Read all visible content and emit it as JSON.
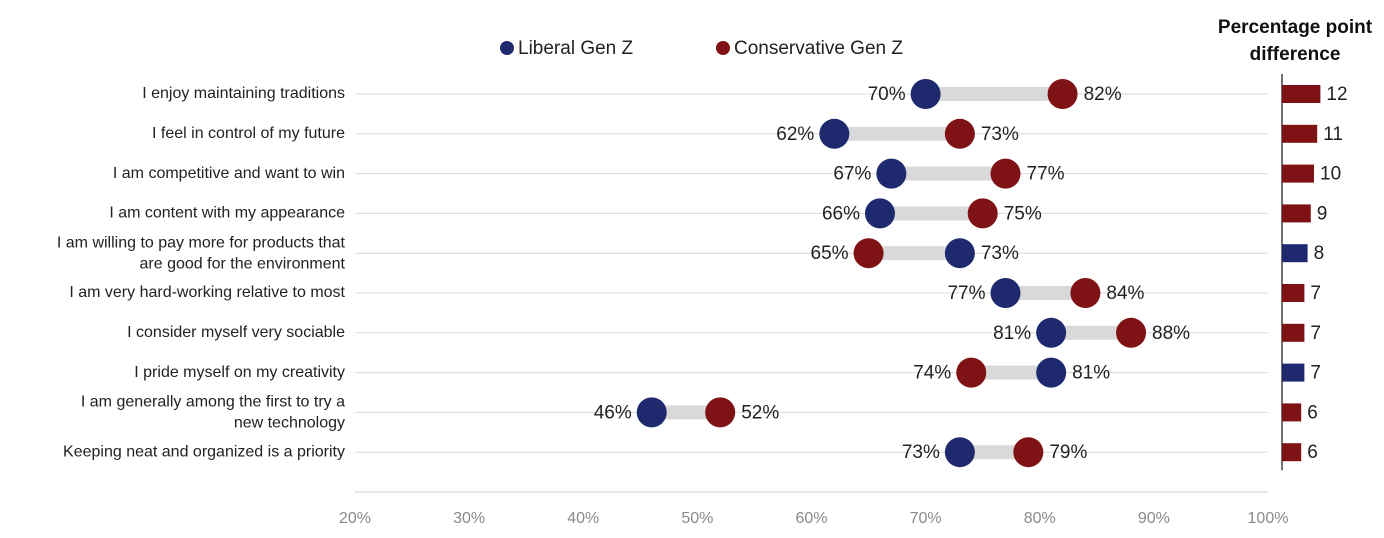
{
  "chart_data": {
    "type": "dumbbell",
    "xlim": [
      20,
      100
    ],
    "x_ticks": [
      "20%",
      "30%",
      "40%",
      "50%",
      "60%",
      "70%",
      "80%",
      "90%",
      "100%"
    ],
    "x_tick_values": [
      20,
      30,
      40,
      50,
      60,
      70,
      80,
      90,
      100
    ],
    "legend": [
      {
        "name": "Liberal Gen Z",
        "color": "#1f2a6e"
      },
      {
        "name": "Conservative Gen Z",
        "color": "#7f1214"
      }
    ],
    "diff_title_line1": "Percentage point",
    "diff_title_line2": "difference",
    "colors": {
      "liberal": "#1f2a6e",
      "conservative": "#7f1214",
      "connector": "#d9d9d9",
      "gridline": "#d9d9d9"
    },
    "rows": [
      {
        "label_lines": [
          "I enjoy maintaining traditions"
        ],
        "liberal": 70,
        "conservative": 82,
        "liberal_label": "70%",
        "conservative_label": "82%",
        "diff": 12,
        "diff_label": "12",
        "diff_color": "conservative"
      },
      {
        "label_lines": [
          "I feel in control of my future"
        ],
        "liberal": 62,
        "conservative": 73,
        "liberal_label": "62%",
        "conservative_label": "73%",
        "diff": 11,
        "diff_label": "11",
        "diff_color": "conservative"
      },
      {
        "label_lines": [
          "I am competitive and want to win"
        ],
        "liberal": 67,
        "conservative": 77,
        "liberal_label": "67%",
        "conservative_label": "77%",
        "diff": 10,
        "diff_label": "10",
        "diff_color": "conservative"
      },
      {
        "label_lines": [
          "I am content with my appearance"
        ],
        "liberal": 66,
        "conservative": 75,
        "liberal_label": "66%",
        "conservative_label": "75%",
        "diff": 9,
        "diff_label": "9",
        "diff_color": "conservative"
      },
      {
        "label_lines": [
          "I am willing to pay more for products that",
          "are good for the environment"
        ],
        "liberal": 73,
        "conservative": 65,
        "liberal_label": "73%",
        "conservative_label": "65%",
        "diff": 8,
        "diff_label": "8",
        "diff_color": "liberal"
      },
      {
        "label_lines": [
          "I am very hard-working relative to most"
        ],
        "liberal": 77,
        "conservative": 84,
        "liberal_label": "77%",
        "conservative_label": "84%",
        "diff": 7,
        "diff_label": "7",
        "diff_color": "conservative"
      },
      {
        "label_lines": [
          "I consider myself very sociable"
        ],
        "liberal": 81,
        "conservative": 88,
        "liberal_label": "81%",
        "conservative_label": "88%",
        "diff": 7,
        "diff_label": "7",
        "diff_color": "conservative"
      },
      {
        "label_lines": [
          "I pride myself on my creativity"
        ],
        "liberal": 81,
        "conservative": 74,
        "liberal_label": "81%",
        "conservative_label": "74%",
        "diff": 7,
        "diff_label": "7",
        "diff_color": "liberal"
      },
      {
        "label_lines": [
          "I am generally among the first to try a",
          "new technology"
        ],
        "liberal": 46,
        "conservative": 52,
        "liberal_label": "46%",
        "conservative_label": "52%",
        "diff": 6,
        "diff_label": "6",
        "diff_color": "conservative"
      },
      {
        "label_lines": [
          "Keeping neat and organized is a priority"
        ],
        "liberal": 73,
        "conservative": 79,
        "liberal_label": "73%",
        "conservative_label": "79%",
        "diff": 6,
        "diff_label": "6",
        "diff_color": "conservative"
      }
    ]
  }
}
